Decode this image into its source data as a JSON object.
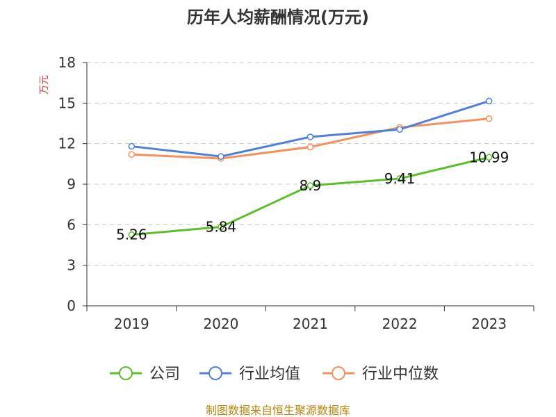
{
  "chart_data": {
    "type": "line",
    "title": "历年人均薪酬情况(万元)",
    "xlabel": "",
    "ylabel": "万元",
    "categories": [
      "2019",
      "2020",
      "2021",
      "2022",
      "2023"
    ],
    "ylim": [
      0,
      18
    ],
    "yticks": [
      0,
      3,
      6,
      9,
      12,
      15,
      18
    ],
    "ytick_labels": [
      "0",
      "3",
      "6",
      "9",
      "12",
      "15",
      "18"
    ],
    "grid": true,
    "legend_position": "bottom",
    "series": [
      {
        "name": "公司",
        "color": "#5cbf2a",
        "values": [
          5.26,
          5.84,
          8.9,
          9.41,
          10.99
        ],
        "data_labels": [
          "5.26",
          "5.84",
          "8.9",
          "9.41",
          "10.99"
        ]
      },
      {
        "name": "行业均值",
        "color": "#4f7fdc",
        "values": [
          11.8,
          11.05,
          12.5,
          13.05,
          15.15
        ]
      },
      {
        "name": "行业中位数",
        "color": "#f4905a",
        "values": [
          11.2,
          10.9,
          11.75,
          13.2,
          13.85
        ]
      }
    ],
    "source": "制图数据来自恒生聚源数据库"
  }
}
